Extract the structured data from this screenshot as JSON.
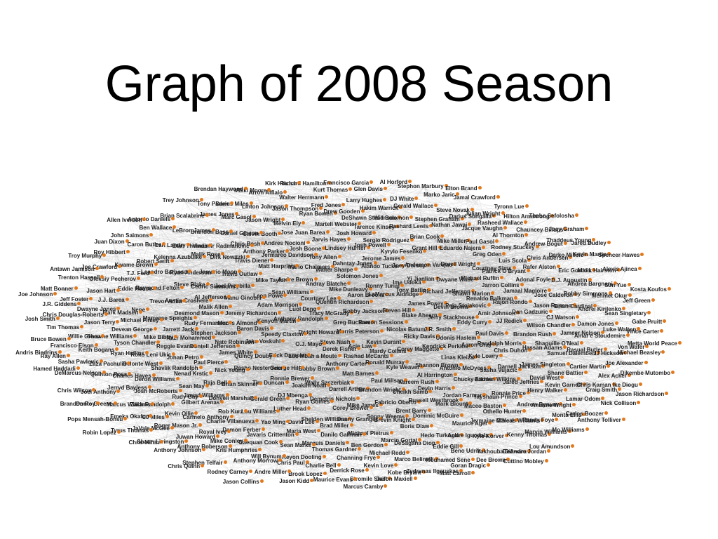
{
  "title": "Graph of 2008 Season",
  "colors": {
    "node": "#e07a1f",
    "edge": "#999999",
    "label": "#222222"
  },
  "nodes": [
    "Morris Peterson",
    "Steve Nash",
    "Greg Buckner",
    "Acie Law",
    "Dwight Howard",
    "Ramon Sessions",
    "Derek Fisher",
    "Tracy McGrady",
    "Kevin Durant",
    "O.J. Mayo",
    "Bobby Jackson",
    "Rashad McCants",
    "Anthony Randolph",
    "Nicolas Batum",
    "Luc Mbah a Moute",
    "Quentin Richardson",
    "Mardy Collins",
    "Speedy Claxton",
    "Steven Hill",
    "Anthony Carter",
    "Luol Deng",
    "Ricky Davis",
    "Erick Dampier",
    "Aaron Brooks",
    "Ronald Murray",
    "Kenyon Martin",
    "Blake Ahearn",
    "Bobby Brown",
    "Courtney Lee",
    "Corey Maggette",
    "Jake Voskuhl",
    "LaMarcus Aldridge",
    "Matt Barnes",
    "Adam Morrison",
    "J.R. Smith",
    "George Hill",
    "Mike Dunleavy",
    "Kyle Weaver",
    "Baron Davis",
    "James Posey",
    "Wally Szczerbiak",
    "Sean Williams",
    "Kendrick Perkins",
    "Quincy Douby",
    "Ronny Turiaf",
    "Paul Millsap",
    "Jeremy Richardson",
    "Jerry Stackhouse",
    "Ronnie Brewer",
    "Andray Blatche",
    "Shannon Brown",
    "Nate Robinson",
    "Tony Battie",
    "Darrell Arthur",
    "Leon Powe",
    "Udonis Haslem",
    "Rasho Nesterovic",
    "Solomon Jones",
    "Kareem Rush",
    "Morris Almond",
    "Devin Brown",
    "Joakim Noah",
    "Andre Brown",
    "Linas Kleiza",
    "James White",
    "Ime Udoka",
    "Brandon Wright",
    "Manu Ginobili",
    "Eddy Curry",
    "Tim Duncan",
    "Walter Sharpe",
    "Al Harrington",
    "Stephen Jackson",
    "Richard Jefferson",
    "Demetris Nichols",
    "Mike Taylor",
    "Aaron Gray",
    "Nick Young",
    "Alando Tucker",
    "Cheikh Samb",
    "Malik Allen",
    "Peja Stojakovic",
    "DJ Mbenga",
    "Mario Chalmers",
    "Antonio McDyess",
    "Dontell Jefferson",
    "Yi Jianlian",
    "Mike James",
    "Joel Przybilla",
    "Paul Davis",
    "Brian Skinner",
    "Dahntay Jones",
    "Devin Harris",
    "Rudy Fernandez",
    "Shawn Marion",
    "Ryan Gomes",
    "Matt Harpring",
    "Kyle Lowry",
    "Paul Pierce",
    "Joey Dorsey",
    "Fabricio Oberto",
    "Al Jefferson",
    "Amir Johnson",
    "Gerald Green",
    "Tony Allen",
    "Chucky Atkins",
    "Nazr Mohammed",
    "Dwyane Wade",
    "Corey Brewer",
    "Travis Outlaw",
    "Randolph Morris",
    "Raja Bell",
    "Jerome James",
    "Russell Westbrook",
    "Desmond Mason",
    "Renaldo Balkman",
    "Luther Head",
    "Jermareo Davidson",
    "Sasha Vujacic",
    "Johan Petro",
    "Anderson Varejao",
    "Sonny Weems",
    "Cedric Simmons",
    "JJ Redick",
    "Donyell Marshall",
    "Lindsey Hunter",
    "Jordan Farmar",
    "Jarrett Jack",
    "Michael Ruffin",
    "Shelden Williams",
    "Travis Diener",
    "Chris Duhon",
    "Nenad Krstic",
    "Kyrylo Fesenko",
    "Brent Barry",
    "Austin Croshere",
    "Rajon Rondo",
    "Lou Williams",
    "Josh Boone",
    "Damien Wilkins",
    "Reggie Evans",
    "Dorell Wright",
    "Danny Granger",
    "Jamario Moon",
    "Brandon Rush",
    "Jawad Williams",
    "Josh Powell",
    "Mark Blount",
    "Marreese Speights",
    "Jarron Collins",
    "David Lee",
    "Anthony Parker",
    "Darnell Jackson",
    "Shavlik Randolph",
    "Grant Hill",
    "Brevin Knight",
    "Steve Blake",
    "Dan Gadzuric",
    "Rob Kurz",
    "Jarvis Hayes",
    "Tayshaun Prince",
    "Mike Bibby",
    "Courtney Sims",
    "Brad Miller",
    "Dirk Nowitzki",
    "Hassan Adams",
    "Sean May",
    "Sergio Rodriguez",
    "Dominic McGuire",
    "Trevor Ariza",
    "Jamaal Magloire",
    "Yao Ming",
    "Andres Nocioni",
    "Jared Jeffries",
    "Roko Leni Ukic",
    "Eduardo Najera",
    "Michael Pietrus",
    "Ryan Anderson",
    "Wilson Chandler",
    "Gilbert Arenas",
    "Josh Howard",
    "Maceo Baston",
    "Michael Finley",
    "Patrick O'Bryant",
    "Maria West",
    "Chris Bosh",
    "James Singleton",
    "Deron Williams",
    "Brian Cook",
    "Boris Diaw",
    "Raymond Felton",
    "Jason Rapono",
    "Charlie Villanueva",
    "Jose Juan Barea",
    "Ronnie Price",
    "Tyson Chandler",
    "Greg Oden",
    "Danilo Gallinari",
    "Malik Rose",
    "Shaquille O'Neal",
    "Rudy Gay",
    "Tarence Kinsey",
    "Maurice Ager",
    "Nene",
    "Adonal Foyle",
    "Javaris Crittenton",
    "Calvin Booth",
    "David West",
    "Delonte West",
    "Mike Miller",
    "Marcin Gortat",
    "Leandro Barbosa",
    "CJ Watson",
    "Carmelo Anthony",
    "Martell Webster",
    "Othello Hunter",
    "Devean George",
    "Luis Scola",
    "Marquis Daniels",
    "Vladimir Radmanovic",
    "Samuel Dalembert",
    "Josh McRoberts",
    "Rashard Lewis",
    "Hedo Turkoglu",
    "Eddie House",
    "Jose Calderon",
    "Damon Ferber",
    "Melvin Ely",
    "Henry Walker",
    "Ryan Hollins",
    "Paul Gasol",
    "Ben Gordon",
    "Kelenna Azubuike",
    "Jameer Nelson",
    "Kevin Ollie",
    "DeShawn Stevenson",
    "Jermaine O'Neal",
    "Mark Madsen",
    "Rafer Alston",
    "Sean Marks",
    "Daniel Gibson",
    "Shane Battier",
    "Charles Hayes",
    "Nathan Jawai",
    "DeSagana Diop",
    "T.J. Ford",
    "Brian Cardinal",
    "Royal Ivey",
    "Ryan Bowen",
    "Andrew Bynum",
    "Shawne Williams",
    "Rodney Stuckey",
    "Thomas Gardner",
    "Etan Thomas",
    "Rasual Butler",
    "Zach Randolph",
    "Will Solomon",
    "Andre Iguodala",
    "J.J. Barea",
    "D.J. Augustin",
    "Daequan Cook",
    "Jason Wright",
    "Kevin Garnett",
    "Zaza Pachulia",
    "Jacque Vaughn",
    "Michael Redd",
    "Robert Swift",
    "Damon Jones",
    "Roger Mason Jr.",
    "Drew Gooden",
    "Marcus Williams",
    "Jason Terry",
    "Chris Andersen",
    "Keyon Dooling",
    "Brandon Bass",
    "Cartier Martin",
    "Jerryd Bayless",
    "Stephen Graham",
    "Eddie Gill",
    "Oleksiy Pecherov",
    "Bobby Simmons",
    "Mike Conley",
    "Jason Thompson",
    "Antoine Wright",
    "Keith Bogans",
    "Al Thornton",
    "Channing Frye",
    "Carl Landry",
    "Amar'e Stoudemire",
    "CJ Miles",
    "Hakim Warrick",
    "Kyle Korver",
    "Dwayne Jones",
    "Eric Gordon",
    "Will Bynum",
    "Marc Gasol",
    "Chris Kaman",
    "Quinton Ross",
    "Darius Songaila",
    "Marco Belinelli",
    "Kwame Brown",
    "Andrei Kirilenko",
    "Juwan Howard",
    "Fred Jones",
    "Randy Foye",
    "Willie Green",
    "Andrew Bogut",
    "Charlie Bell",
    "LeBron James",
    "JJ Hickson",
    "Marcus Williams",
    "Gerald Wallace",
    "Beno Udrih",
    "Jason Hart",
    "Andrea Bargnani",
    "Kris Humphries",
    "Linton Johnson",
    "Lamar Odom",
    "Sasha Pavlovic",
    "Rasheed Wallace",
    "Kevin Love",
    "Caron Butler",
    "Luke Walton",
    "JaVale McGee",
    "Larry Hughes",
    "Kenny Thomas",
    "Chris Douglas-Roberts",
    "Darko Milicic",
    "Chris Paul",
    "James Jones",
    "Alex Acker",
    "Joel Anthony",
    "Steve Novak",
    "Mouhamed Sene",
    "Joe Crawford",
    "Mehmet Okur",
    "Anthony Roberson",
    "Walter Herrmann",
    "Monta Ellis",
    "Francisco Elson",
    "Chauncey Billups",
    "Derrick Rose",
    "Ben Wallace",
    "Von Wafer",
    "Emeka Okafor",
    "DJ White",
    "Yakhouba Diawara",
    "Jeff Foster",
    "Malik Hairston",
    "Anthony Morrow",
    "Darius Miles",
    "Craig Smith",
    "DeMarcus Nelson",
    "Julian Wright",
    "Kobe Bryant",
    "Roy Hibbert",
    "Sean Singletary",
    "Shaun Livingston",
    "Kurt Thomas",
    "Marvin Williams",
    "Tim Thomas",
    "Thaddeus Young",
    "Brook Lopez",
    "Brian Scalabrine",
    "Joe Alexander",
    "Donte Greene",
    "Marko Jaric",
    "Goran Dragic",
    "Trenton Hassell",
    "Sun Yue",
    "Stephen Telfair",
    "Arron Afflalo",
    "Carlos Boozer",
    "Ray Allen",
    "Hilton Armstrong",
    "Stromile Swift",
    "John Salmons",
    "Vince Carter",
    "Tyrus Thomas",
    "Glen Davis",
    "DeAndre Jordan",
    "J.R. Giddens",
    "Kevin Martin",
    "Andre Miller",
    "Tony Parker",
    "Ike Diogu",
    "Chris Wilcox",
    "Jamal Crawford",
    "Zydrunas Ilgauskas",
    "Troy Murphy",
    "Jeff Green",
    "Anthony Johnson",
    "Richard Hamilton",
    "Mo Williams",
    "Bruce Bowen",
    "Joey Graham",
    "Maurice Evans",
    "Antonio Daniels",
    "Michael Beasley",
    "Pops Mensah-Bonsu",
    "Stephon Marbury",
    "Dee Brown",
    "Matt Bonner",
    "Alexis Ajinca",
    "Rodney Carney",
    "Mikki Moore",
    "Nick Collison",
    "Hamed Haddadi",
    "Tyronn Lue",
    "Jason Maxiell",
    "Juan Dixon",
    "Gabe Pruitt",
    "Chris Mihm",
    "Francisco Garcia",
    "Lou Amundson",
    "Josh Smith",
    "Jared Dudley",
    "Jason Kidd",
    "Trey Johnson",
    "Dikembe Mutombo",
    "Brandon Roy",
    "Elton Brand",
    "Matt Carroll",
    "Antawn Jamison",
    "Kosta Koufos",
    "Chris Quinn",
    "Kirk Hinrich",
    "Anthony Tolliver",
    "Andris Biedrins",
    "Thabo Sefolosha",
    "Marcus Camby",
    "Allen Iverson",
    "Metta World Peace",
    "Robin Lopez",
    "Al Horford",
    "Cuttino Mobley",
    "Joe Johnson",
    "Spencer Hawes",
    "Jason Collins",
    "Brendan Haywood",
    "Jason Richardson"
  ]
}
